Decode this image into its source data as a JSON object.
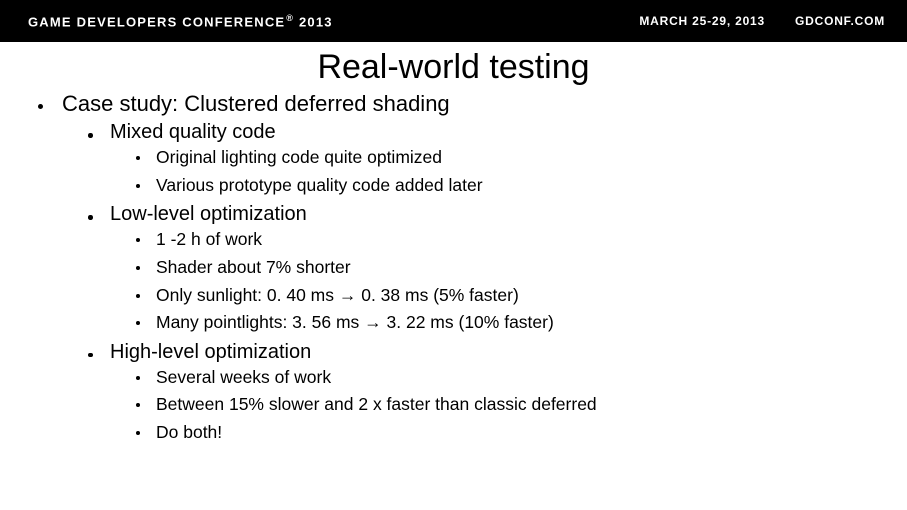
{
  "header": {
    "left_main": "GAME DEVELOPERS CONFERENCE",
    "left_reg": "®",
    "left_year": "2013",
    "right_dates": "MARCH 25-29, 2013",
    "right_site": "GDCONF.COM"
  },
  "slide": {
    "title": "Real-world testing",
    "l0": {
      "item0": "Case study: Clustered deferred shading"
    },
    "l1": {
      "item0": "Mixed quality code",
      "item1": "Low-level optimization",
      "item2": "High-level optimization"
    },
    "l2a": {
      "i0": "Original lighting code quite optimized",
      "i1": "Various prototype quality code added later"
    },
    "l2b": {
      "i0": "1 -2 h of work",
      "i1": "Shader about 7% shorter",
      "i2": "Only sunlight: 0. 40 ms → 0. 38 ms (5% faster)",
      "i3": "Many pointlights: 3. 56 ms → 3. 22 ms (10% faster)"
    },
    "l2c": {
      "i0": "Several weeks of work",
      "i1": "Between 15% slower and 2 x faster than classic deferred",
      "i2": "Do both!"
    }
  }
}
